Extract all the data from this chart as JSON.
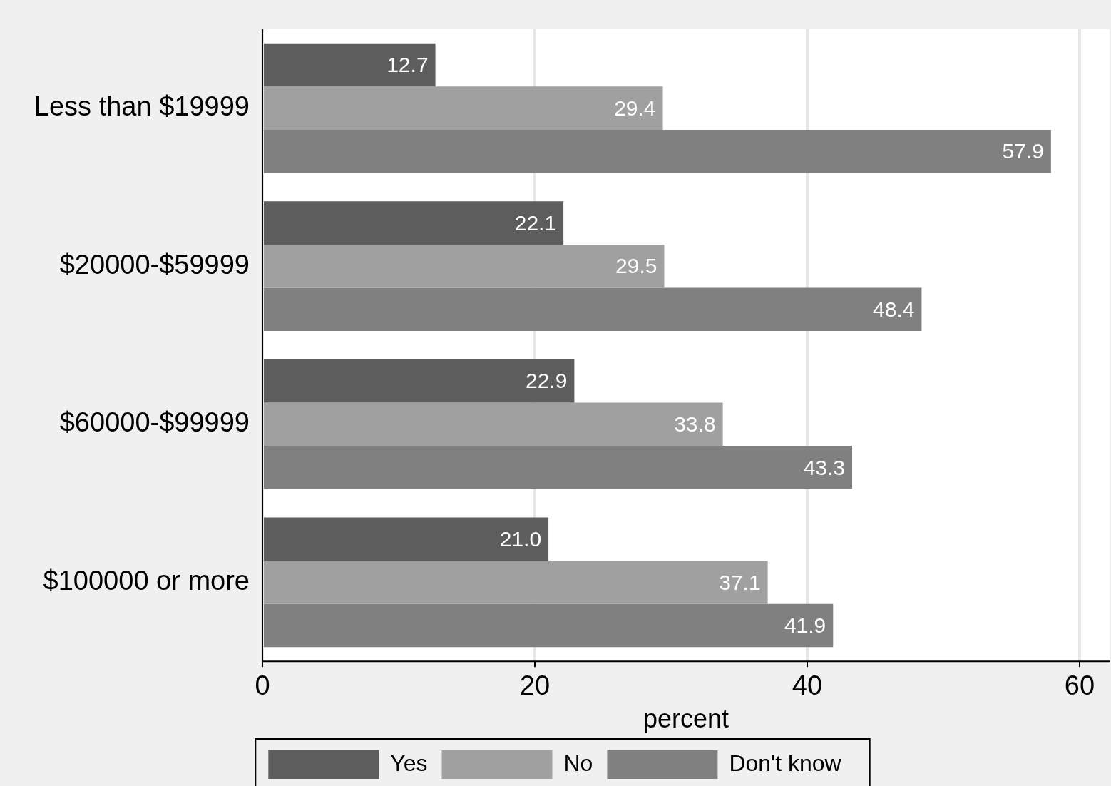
{
  "chart_data": {
    "type": "bar",
    "orientation": "horizontal",
    "categories": [
      "Less than $19999",
      "$20000-$59999",
      "$60000-$99999",
      "$100000 or more"
    ],
    "series": [
      {
        "name": "Yes",
        "color": "#5d5d5d",
        "values": [
          12.7,
          22.1,
          22.9,
          21.0
        ],
        "value_labels": [
          "12.7",
          "22.1",
          "22.9",
          "21.0"
        ]
      },
      {
        "name": "No",
        "color": "#a0a0a0",
        "values": [
          29.4,
          29.5,
          33.8,
          37.1
        ],
        "value_labels": [
          "29.4",
          "29.5",
          "33.8",
          "37.1"
        ]
      },
      {
        "name": "Don't know",
        "color": "#808080",
        "values": [
          57.9,
          48.4,
          43.3,
          41.9
        ],
        "value_labels": [
          "57.9",
          "48.4",
          "43.3",
          "41.9"
        ]
      }
    ],
    "xlabel": "percent",
    "xlim": [
      0,
      62.2
    ],
    "xticks": [
      0,
      20,
      40,
      60
    ],
    "grid": "x",
    "legend": "bottom"
  }
}
